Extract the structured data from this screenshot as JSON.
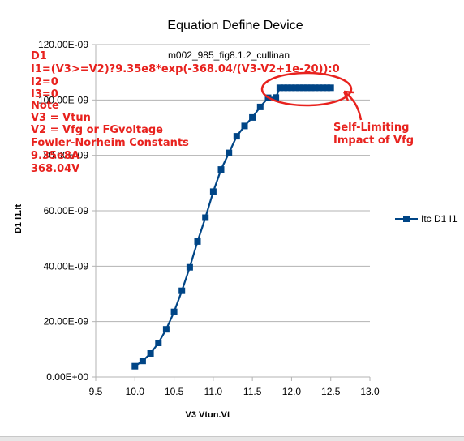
{
  "chart_data": {
    "type": "line",
    "title": "Equation Define Device",
    "subtitle": "m002_985_fig8.1.2_cullinan",
    "xlabel": "V3 Vtun.Vt",
    "ylabel": "D1 I1.It",
    "xlim": [
      9.5,
      13.0
    ],
    "ylim": [
      0,
      1.2e-07
    ],
    "x_ticks": [
      "9.5",
      "10.0",
      "10.5",
      "11.0",
      "11.5",
      "12.0",
      "12.5",
      "13.0"
    ],
    "y_ticks": [
      "0.00E+00",
      "20.00E-09",
      "40.00E-09",
      "60.00E-09",
      "80.00E-09",
      "100.00E-09",
      "120.00E-09"
    ],
    "grid": "horizontal",
    "legend_position": "right",
    "series": [
      {
        "name": "Itc D1 I1",
        "color": "#004586",
        "x": [
          10.0,
          10.1,
          10.2,
          10.3,
          10.4,
          10.5,
          10.6,
          10.7,
          10.8,
          10.9,
          11.0,
          11.1,
          11.2,
          11.3,
          11.4,
          11.5,
          11.6,
          11.7,
          11.8,
          11.85,
          11.9,
          11.95,
          12.0,
          12.05,
          12.1,
          12.15,
          12.2,
          12.25,
          12.3,
          12.35,
          12.4,
          12.45,
          12.5
        ],
        "values": [
          3.9e-09,
          5.8e-09,
          8.5e-09,
          1.23e-08,
          1.72e-08,
          2.35e-08,
          3.11e-08,
          3.96e-08,
          4.89e-08,
          5.75e-08,
          6.69e-08,
          7.49e-08,
          8.09e-08,
          8.69e-08,
          9.06e-08,
          9.37e-08,
          9.75e-08,
          1.008e-07,
          1.009e-07,
          1.044e-07,
          1.044e-07,
          1.044e-07,
          1.044e-07,
          1.044e-07,
          1.044e-07,
          1.044e-07,
          1.044e-07,
          1.044e-07,
          1.044e-07,
          1.044e-07,
          1.044e-07,
          1.044e-07,
          1.044e-07
        ]
      }
    ],
    "annotations": {
      "color": "#e8221e",
      "lines": [
        "D1",
        "I1=(V3>=V2)?9.35e8*exp(-368.04/(V3-V2+1e-20)):0",
        "I2=0",
        "I3=0",
        "Note",
        "V3 = Vtun",
        "V2 = Vfg or FGvoltage",
        "Fowler-Norheim Constants",
        "9.35e8A",
        "368.04V"
      ],
      "callout": [
        "Self-Limiting",
        "Impact of Vfg"
      ]
    }
  }
}
